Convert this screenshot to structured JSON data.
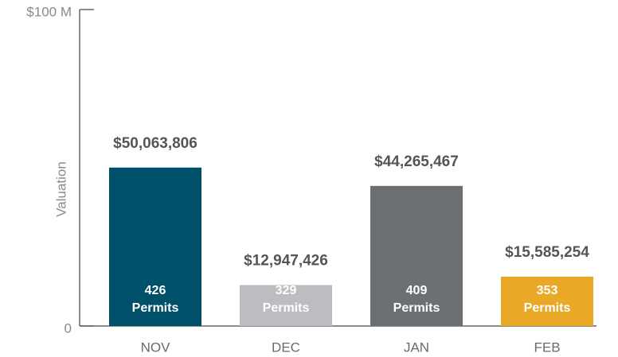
{
  "chart_data": {
    "type": "bar",
    "y_label": "Valuation",
    "categories": [
      "NOV",
      "DEC",
      "JAN",
      "FEB"
    ],
    "values": [
      50063806,
      12947426,
      44265467,
      15585254
    ],
    "value_labels": [
      "$50,063,806",
      "$12,947,426",
      "$44,265,467",
      "$15,585,254"
    ],
    "colors": [
      "#00506a",
      "#bcbdc0",
      "#6d7073",
      "#e9a825"
    ],
    "permits": {
      "name": "Permits",
      "values": [
        426,
        329,
        409,
        353
      ]
    },
    "ylim": [
      0,
      100000000
    ],
    "yticks": [
      0,
      {
        "value": 100000000,
        "label": "$100 M"
      }
    ],
    "grid": false
  }
}
